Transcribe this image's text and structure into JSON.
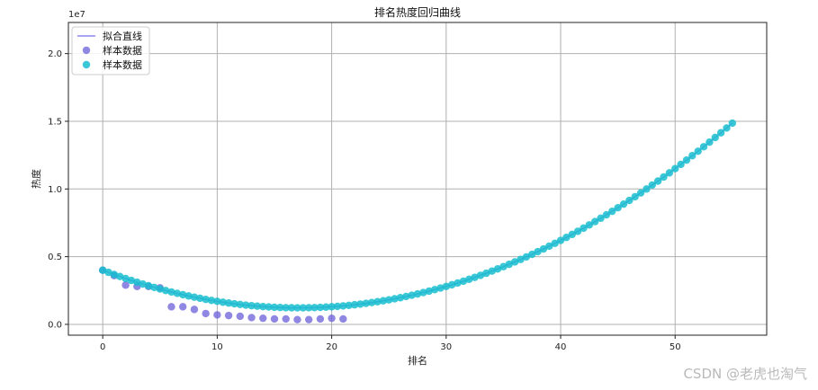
{
  "chart_data": {
    "type": "scatter",
    "title": "排名热度回归曲线",
    "xlabel": "排名",
    "ylabel": "热度",
    "y_offset_label": "1e7",
    "xlim": [
      -3,
      58
    ],
    "ylim": [
      -0.08,
      2.23
    ],
    "x_ticks": [
      0,
      10,
      20,
      30,
      40,
      50
    ],
    "y_ticks": [
      0.0,
      0.5,
      1.0,
      1.5,
      2.0
    ],
    "y_tick_labels": [
      "0.0",
      "0.5",
      "1.0",
      "1.5",
      "2.0"
    ],
    "grid": true,
    "legend_position": "top-left",
    "series": [
      {
        "name": "拟合直线",
        "kind": "line",
        "color": "#8888ee",
        "fit": {
          "a": 0.0095,
          "b": -0.325,
          "c": 4.0
        }
      },
      {
        "name": "样本数据",
        "kind": "scatter",
        "color": "#6a5fd8",
        "x": [
          0,
          1,
          2,
          3,
          4,
          5,
          6,
          7,
          8,
          9,
          10,
          11,
          12,
          13,
          14,
          15,
          16,
          17,
          18,
          19,
          20,
          21
        ],
        "y": [
          0.4,
          0.36,
          0.29,
          0.28,
          0.28,
          0.27,
          0.13,
          0.13,
          0.11,
          0.08,
          0.07,
          0.065,
          0.06,
          0.05,
          0.045,
          0.04,
          0.04,
          0.035,
          0.035,
          0.04,
          0.045,
          0.04
        ]
      },
      {
        "name": "样本数据",
        "kind": "scatter",
        "color": "#17becf",
        "x_range": [
          0,
          55
        ],
        "x_step": 0.5,
        "fit": {
          "a": 0.0095,
          "b": -0.325,
          "c": 4.0
        }
      }
    ]
  },
  "watermark": "CSDN @老虎也淘气"
}
